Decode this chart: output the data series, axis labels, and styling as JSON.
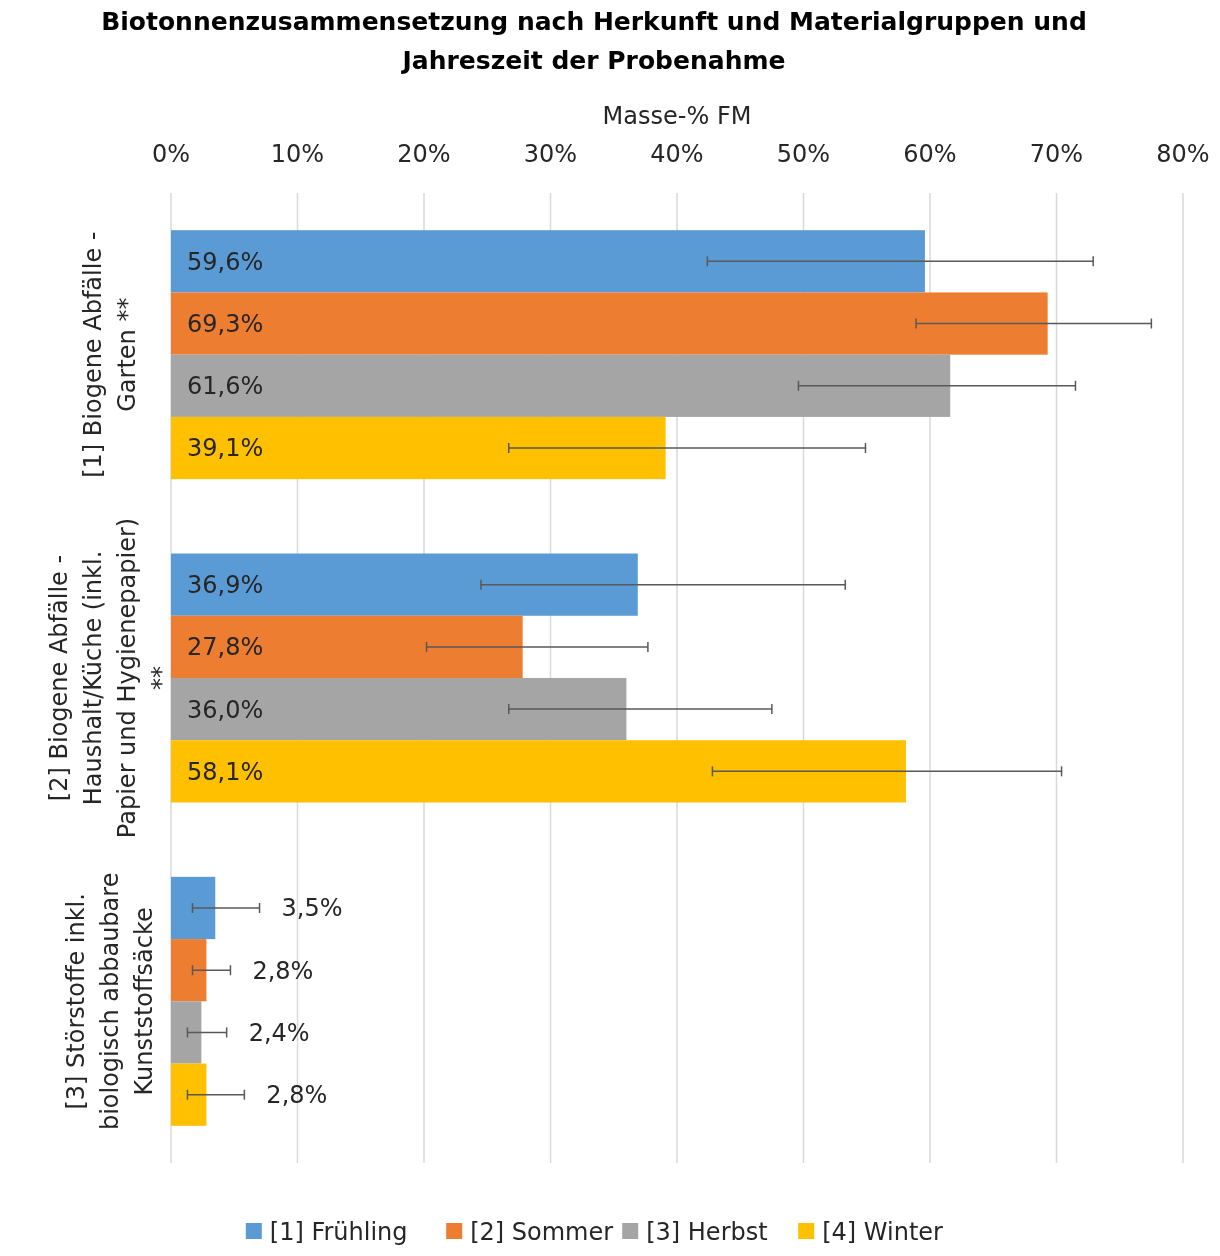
{
  "chart_data": {
    "type": "bar",
    "orientation": "horizontal",
    "title": "Biotonnenzusammensetzung nach Herkunft und Materialgruppen und Jahreszeit der Probenahme",
    "xlabel": "Masse-% FM",
    "categories": [
      "[1] Biogene Abfälle - Garten **",
      "[2] Biogene Abfälle - Haushalt/Küche (inkl. Papier und Hygienepapier) **",
      "[3] Störstoffe inkl. biologisch abbaubare Kunststoffsäcke"
    ],
    "series": [
      {
        "name": "[1] Frühling",
        "color": "#5b9bd5",
        "values": [
          59.6,
          36.9,
          3.5
        ],
        "value_labels": [
          "59,6%",
          "36,9%",
          "3,5%"
        ],
        "errors": [
          [
            42.4,
            72.9
          ],
          [
            24.5,
            53.3
          ],
          [
            1.7,
            7.0
          ]
        ]
      },
      {
        "name": "[2] Sommer",
        "color": "#ed7d31",
        "values": [
          69.3,
          27.8,
          2.8
        ],
        "value_labels": [
          "69,3%",
          "27,8%",
          "2,8%"
        ],
        "errors": [
          [
            58.9,
            77.5
          ],
          [
            20.2,
            37.7
          ],
          [
            1.7,
            4.7
          ]
        ]
      },
      {
        "name": "[3] Herbst",
        "color": "#a5a5a5",
        "values": [
          61.6,
          36.0,
          2.4
        ],
        "value_labels": [
          "61,6%",
          "36,0%",
          "2,4%"
        ],
        "errors": [
          [
            49.6,
            71.5
          ],
          [
            26.7,
            47.5
          ],
          [
            1.3,
            4.4
          ]
        ]
      },
      {
        "name": "[4] Winter",
        "color": "#ffc000",
        "values": [
          39.1,
          58.1,
          2.8
        ],
        "value_labels": [
          "39,1%",
          "58,1%",
          "2,8%"
        ],
        "errors": [
          [
            26.7,
            54.9
          ],
          [
            42.8,
            70.4
          ],
          [
            1.3,
            5.8
          ]
        ]
      }
    ],
    "xlim": [
      0,
      80
    ],
    "xticks": [
      {
        "value": 0,
        "label": "0%"
      },
      {
        "value": 10,
        "label": "10%"
      },
      {
        "value": 20,
        "label": "20%"
      },
      {
        "value": 30,
        "label": "30%"
      },
      {
        "value": 40,
        "label": "40%"
      },
      {
        "value": 50,
        "label": "50%"
      },
      {
        "value": 60,
        "label": "60%"
      },
      {
        "value": 70,
        "label": "70%"
      },
      {
        "value": 80,
        "label": "80%"
      }
    ],
    "grid": "x",
    "legend": "bottom"
  }
}
